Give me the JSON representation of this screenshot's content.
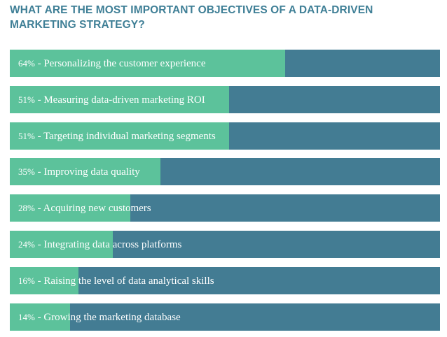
{
  "chart_data": {
    "type": "bar",
    "orientation": "horizontal",
    "title": "WHAT ARE THE MOST IMPORTANT OBJECTIVES OF A DATA-DRIVEN MARKETING STRATEGY?",
    "xlim": [
      0,
      100
    ],
    "colors": {
      "fill": "#5cc29b",
      "track": "#437c93",
      "title": "#3f7f96"
    },
    "categories": [
      "Personalizing the customer experience",
      "Measuring data-driven marketing ROI",
      "Targeting individual marketing segments",
      "Improving data quality",
      "Acquiring new customers",
      "Integrating data across platforms",
      "Raising the level of data analytical skills",
      "Growing the marketing database"
    ],
    "values": [
      64,
      51,
      51,
      35,
      28,
      24,
      16,
      14
    ],
    "value_labels": [
      "64%",
      "51%",
      "51%",
      "35%",
      "28%",
      "24%",
      "16%",
      "14%"
    ]
  }
}
